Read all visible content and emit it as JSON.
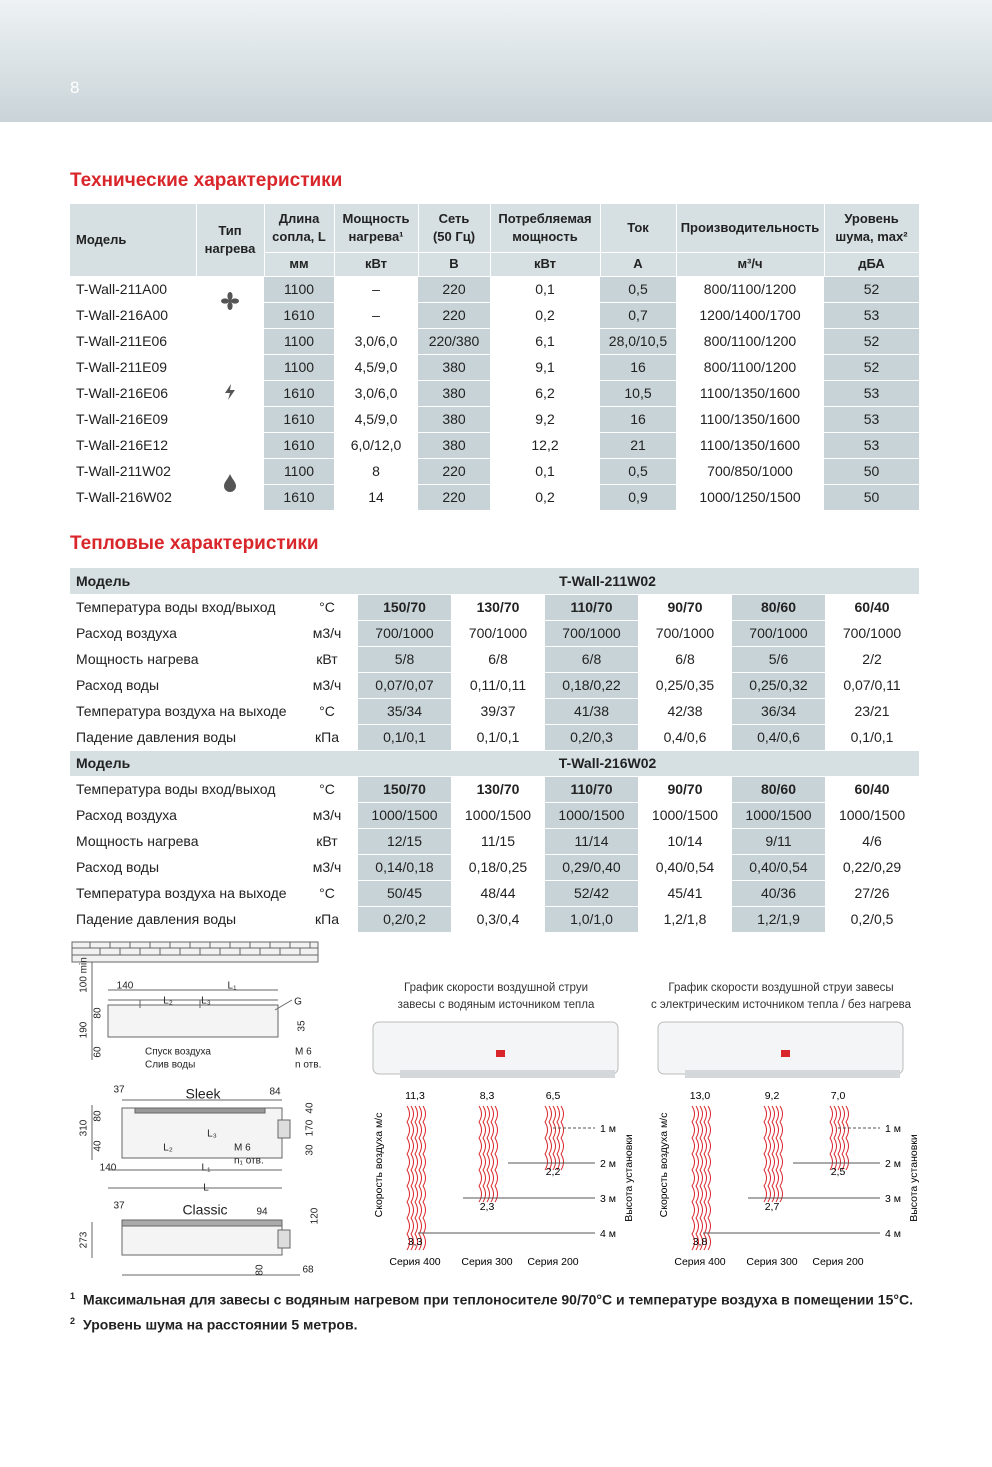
{
  "header": {
    "page_number": "8"
  },
  "tech": {
    "title": "Технические характеристики",
    "headers": [
      [
        "Модель"
      ],
      [
        "Тип",
        "нагрева"
      ],
      [
        "Длина",
        "сопла, L"
      ],
      [
        "Мощность",
        "нагрева¹"
      ],
      [
        "Сеть",
        "(50 Гц)"
      ],
      [
        "Потребляемая",
        "мощность"
      ],
      [
        "Ток"
      ],
      [
        "Производительность"
      ],
      [
        "Уровень",
        "шума, max²"
      ]
    ],
    "units": [
      "мм",
      "кВт",
      "В",
      "кВт",
      "А",
      "м³/ч",
      "дБА"
    ],
    "groups": [
      {
        "rows": [
          [
            "T-Wall-211A00",
            "1100",
            "–",
            "220",
            "0,1",
            "0,5",
            "800/1100/1200",
            "52"
          ],
          [
            "T-Wall-216A00",
            "1610",
            "–",
            "220",
            "0,2",
            "0,7",
            "1200/1400/1700",
            "53"
          ]
        ]
      },
      {
        "rows": [
          [
            "T-Wall-211E06",
            "1100",
            "3,0/6,0",
            "220/380",
            "6,1",
            "28,0/10,5",
            "800/1100/1200",
            "52"
          ],
          [
            "T-Wall-211E09",
            "1100",
            "4,5/9,0",
            "380",
            "9,1",
            "16",
            "800/1100/1200",
            "52"
          ],
          [
            "T-Wall-216E06",
            "1610",
            "3,0/6,0",
            "380",
            "6,2",
            "10,5",
            "1100/1350/1600",
            "53"
          ],
          [
            "T-Wall-216E09",
            "1610",
            "4,5/9,0",
            "380",
            "9,2",
            "16",
            "1100/1350/1600",
            "53"
          ],
          [
            "T-Wall-216E12",
            "1610",
            "6,0/12,0",
            "380",
            "12,2",
            "21",
            "1100/1350/1600",
            "53"
          ]
        ]
      },
      {
        "rows": [
          [
            "T-Wall-211W02",
            "1100",
            "8",
            "220",
            "0,1",
            "0,5",
            "700/850/1000",
            "50"
          ],
          [
            "T-Wall-216W02",
            "1610",
            "14",
            "220",
            "0,2",
            "0,9",
            "1000/1250/1500",
            "50"
          ]
        ]
      }
    ]
  },
  "thermal": {
    "title": "Тепловые характеристики",
    "blocks": [
      {
        "model_label": "Модель",
        "model": "T-Wall-211W02",
        "rows": [
          {
            "label": "Температура воды вход/выход",
            "unit": "°C",
            "values": [
              "150/70",
              "130/70",
              "110/70",
              "90/70",
              "80/60",
              "60/40"
            ]
          },
          {
            "label": "Расход воздуха",
            "unit": "м3/ч",
            "values": [
              "700/1000",
              "700/1000",
              "700/1000",
              "700/1000",
              "700/1000",
              "700/1000"
            ]
          },
          {
            "label": "Мощность нагрева",
            "unit": "кВт",
            "values": [
              "5/8",
              "6/8",
              "6/8",
              "6/8",
              "5/6",
              "2/2"
            ]
          },
          {
            "label": "Расход воды",
            "unit": "м3/ч",
            "values": [
              "0,07/0,07",
              "0,11/0,11",
              "0,18/0,22",
              "0,25/0,35",
              "0,25/0,32",
              "0,07/0,11"
            ]
          },
          {
            "label": "Температура воздуха на выходе",
            "unit": "°C",
            "values": [
              "35/34",
              "39/37",
              "41/38",
              "42/38",
              "36/34",
              "23/21"
            ]
          },
          {
            "label": "Падение давления воды",
            "unit": "кПа",
            "values": [
              "0,1/0,1",
              "0,1/0,1",
              "0,2/0,3",
              "0,4/0,6",
              "0,4/0,6",
              "0,1/0,1"
            ]
          }
        ]
      },
      {
        "model_label": "Модель",
        "model": "T-Wall-216W02",
        "rows": [
          {
            "label": "Температура воды вход/выход",
            "unit": "°C",
            "values": [
              "150/70",
              "130/70",
              "110/70",
              "90/70",
              "80/60",
              "60/40"
            ]
          },
          {
            "label": "Расход воздуха",
            "unit": "м3/ч",
            "values": [
              "1000/1500",
              "1000/1500",
              "1000/1500",
              "1000/1500",
              "1000/1500",
              "1000/1500"
            ]
          },
          {
            "label": "Мощность нагрева",
            "unit": "кВт",
            "values": [
              "12/15",
              "11/15",
              "11/14",
              "10/14",
              "9/11",
              "4/6"
            ]
          },
          {
            "label": "Расход воды",
            "unit": "м3/ч",
            "values": [
              "0,14/0,18",
              "0,18/0,25",
              "0,29/0,40",
              "0,40/0,54",
              "0,40/0,54",
              "0,22/0,29"
            ]
          },
          {
            "label": "Температура воздуха на выходе",
            "unit": "°C",
            "values": [
              "50/45",
              "48/44",
              "52/42",
              "45/41",
              "40/36",
              "27/26"
            ]
          },
          {
            "label": "Падение давления воды",
            "unit": "кПа",
            "values": [
              "0,2/0,2",
              "0,3/0,4",
              "1,0/1,0",
              "1,2/1,8",
              "1,2/1,9",
              "0,2/0,5"
            ]
          }
        ]
      }
    ]
  },
  "drawing": {
    "labels": [
      "100 min",
      "140",
      "L₁",
      "L₂",
      "L₃",
      "G",
      "80",
      "190",
      "35",
      "60",
      "Спуск воздуха",
      "Слив воды",
      "М 6",
      "n отв.",
      "Sleek",
      "37",
      "84",
      "310",
      "80",
      "40",
      "170",
      "40",
      "30",
      "L₂",
      "L₃",
      "М 6",
      "n₁ отв.",
      "140",
      "L₁",
      "L",
      "Classic",
      "37",
      "94",
      "120",
      "273",
      "80",
      "68"
    ]
  },
  "speed_charts": [
    {
      "title": [
        "График скорости воздушной струи",
        "завесы с водяным источником тепла"
      ],
      "top": [
        "11,3",
        "8,3",
        "6,5"
      ],
      "bottom": [
        "3,3",
        "2,3",
        "2,2"
      ],
      "heights": [
        "1 м",
        "2 м",
        "3 м",
        "4 м"
      ],
      "y_label": "Скорость воздуха м/с",
      "right_label": "Высота установки",
      "series": [
        "Серия 400",
        "Серия 300",
        "Серия 200"
      ]
    },
    {
      "title": [
        "График скорости воздушной струи завесы",
        "с электрическим источником тепла / без нагрева"
      ],
      "top": [
        "13,0",
        "9,2",
        "7,0"
      ],
      "bottom": [
        "3,8",
        "2,7",
        "2,5"
      ],
      "heights": [
        "1 м",
        "2 м",
        "3 м",
        "4 м"
      ],
      "y_label": "Скорость воздуха м/с",
      "right_label": "Высота установки",
      "series": [
        "Серия 400",
        "Серия 300",
        "Серия 200"
      ]
    }
  ],
  "footnotes": [
    {
      "mark": "1",
      "text": "Максимальная для завесы с водяным нагревом при теплоносителе 90/70°С и температуре воздуха в помещении 15°С."
    },
    {
      "mark": "2",
      "text": "Уровень шума на расстоянии 5 метров."
    }
  ]
}
